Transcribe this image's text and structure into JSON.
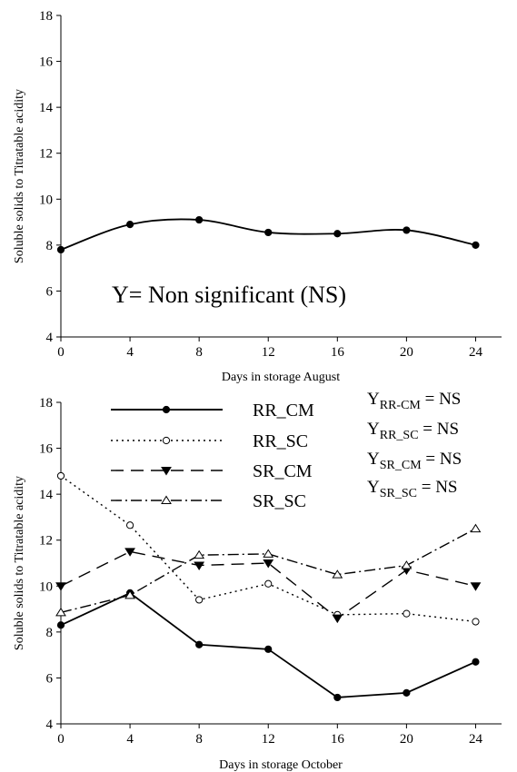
{
  "chart_data": [
    {
      "type": "line",
      "title": "",
      "xlabel": "Days in storage August",
      "ylabel": "Soluble solids to Titratable acidity",
      "x": [
        0,
        4,
        8,
        12,
        16,
        20,
        24
      ],
      "xticks": [
        "0",
        "4",
        "8",
        "12",
        "16",
        "20",
        "24"
      ],
      "yticks": [
        "4",
        "6",
        "8",
        "10",
        "12",
        "14",
        "16",
        "18"
      ],
      "xlim": [
        0,
        25.5
      ],
      "ylim": [
        4,
        18
      ],
      "grid": false,
      "smooth": true,
      "series": [
        {
          "name": "",
          "values": [
            7.8,
            8.9,
            9.1,
            8.55,
            8.5,
            8.65,
            8.0
          ],
          "marker": "filled-circle",
          "line": "solid"
        }
      ],
      "annotations": [
        "Y= Non significant (NS)"
      ]
    },
    {
      "type": "line",
      "title": "",
      "xlabel": "Days in storage October",
      "ylabel": "Soluble solids to Titratable acidity",
      "x": [
        0,
        4,
        8,
        12,
        16,
        20,
        24
      ],
      "xticks": [
        "0",
        "4",
        "8",
        "12",
        "16",
        "20",
        "24"
      ],
      "yticks": [
        "4",
        "6",
        "8",
        "10",
        "12",
        "14",
        "16",
        "18"
      ],
      "xlim": [
        0,
        25.5
      ],
      "ylim": [
        4,
        18
      ],
      "grid": false,
      "legend_position": "top-left",
      "series": [
        {
          "name": "RR_CM",
          "values": [
            8.3,
            9.7,
            7.45,
            7.25,
            5.15,
            5.35,
            6.7
          ],
          "marker": "filled-circle",
          "line": "solid"
        },
        {
          "name": "RR_SC",
          "values": [
            14.8,
            12.65,
            9.4,
            10.1,
            8.75,
            8.8,
            8.45
          ],
          "marker": "open-circle",
          "line": "dotted"
        },
        {
          "name": "SR_CM",
          "values": [
            10.0,
            11.5,
            10.9,
            11.0,
            8.6,
            10.7,
            10.0
          ],
          "marker": "filled-triangle-down",
          "line": "dashed"
        },
        {
          "name": "SR_SC",
          "values": [
            8.85,
            9.6,
            11.35,
            11.4,
            10.5,
            10.9,
            12.5
          ],
          "marker": "open-triangle-up",
          "line": "dash-dot"
        }
      ],
      "equations": [
        {
          "lhs": "Y",
          "sub": "RR-CM",
          "rhs": " = NS"
        },
        {
          "lhs": "Y",
          "sub": "RR_SC",
          "rhs": " = NS"
        },
        {
          "lhs": "Y",
          "sub": "SR_CM",
          "rhs": " = NS"
        },
        {
          "lhs": "Y",
          "sub": "SR_SC",
          "rhs": " = NS"
        }
      ]
    }
  ]
}
